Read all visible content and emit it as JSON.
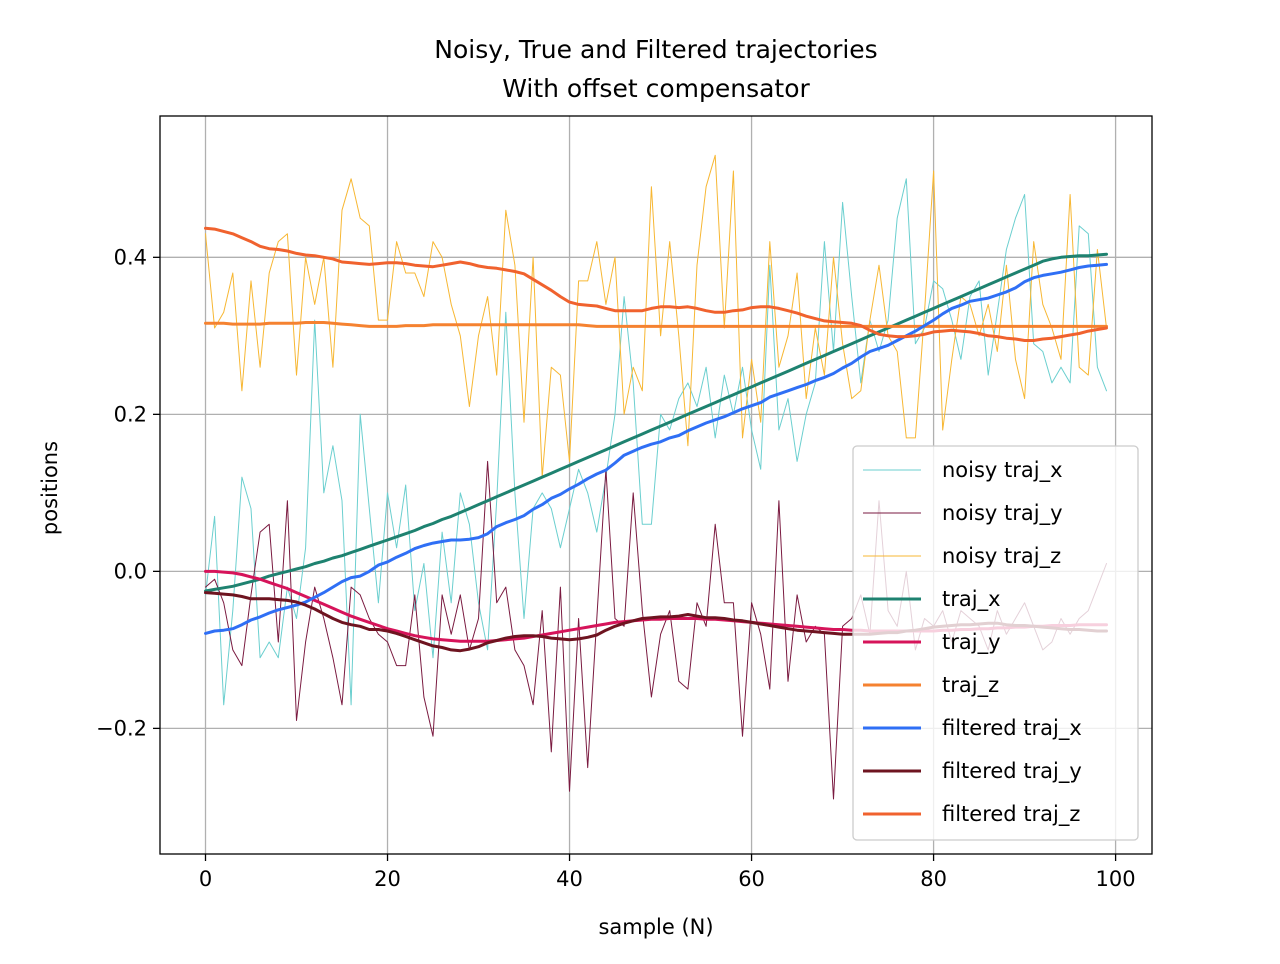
{
  "chart_data": {
    "type": "line",
    "title": "Noisy, True and Filtered trajectories",
    "subtitle": "With offset compensator",
    "xlabel": "sample (N)",
    "ylabel": "positions",
    "xlim": [
      -5,
      104
    ],
    "ylim": [
      -0.36,
      0.58
    ],
    "xticks": [
      0,
      20,
      40,
      60,
      80,
      100
    ],
    "yticks": [
      -0.2,
      0.0,
      0.2,
      0.4
    ],
    "xtick_labels": [
      "0",
      "20",
      "40",
      "60",
      "80",
      "100"
    ],
    "ytick_labels": [
      "−0.2",
      "0.0",
      "0.2",
      "0.4"
    ],
    "grid": true,
    "legend_position": "lower-right",
    "x": [
      0,
      1,
      2,
      3,
      4,
      5,
      6,
      7,
      8,
      9,
      10,
      11,
      12,
      13,
      14,
      15,
      16,
      17,
      18,
      19,
      20,
      21,
      22,
      23,
      24,
      25,
      26,
      27,
      28,
      29,
      30,
      31,
      32,
      33,
      34,
      35,
      36,
      37,
      38,
      39,
      40,
      41,
      42,
      43,
      44,
      45,
      46,
      47,
      48,
      49,
      50,
      51,
      52,
      53,
      54,
      55,
      56,
      57,
      58,
      59,
      60,
      61,
      62,
      63,
      64,
      65,
      66,
      67,
      68,
      69,
      70,
      71,
      72,
      73,
      74,
      75,
      76,
      77,
      78,
      79,
      80,
      81,
      82,
      83,
      84,
      85,
      86,
      87,
      88,
      89,
      90,
      91,
      92,
      93,
      94,
      95,
      96,
      97,
      98,
      99
    ],
    "series": [
      {
        "name": "noisy traj_x",
        "color": "#6bcfcf",
        "width": 1,
        "values": [
          -0.03,
          0.07,
          -0.17,
          -0.05,
          0.12,
          0.08,
          -0.11,
          -0.09,
          -0.11,
          -0.02,
          -0.06,
          0.03,
          0.32,
          0.1,
          0.16,
          0.09,
          -0.17,
          0.2,
          0.08,
          -0.04,
          0.1,
          0.03,
          0.11,
          -0.05,
          0.01,
          -0.11,
          0.05,
          -0.04,
          0.1,
          0.06,
          -0.04,
          -0.1,
          0.09,
          0.33,
          0.1,
          -0.06,
          0.08,
          0.1,
          0.08,
          0.03,
          0.08,
          0.13,
          0.1,
          0.05,
          0.12,
          0.2,
          0.35,
          0.24,
          0.06,
          0.06,
          0.2,
          0.18,
          0.22,
          0.24,
          0.21,
          0.26,
          0.17,
          0.25,
          0.2,
          0.26,
          0.18,
          0.13,
          0.39,
          0.18,
          0.22,
          0.14,
          0.2,
          0.24,
          0.42,
          0.28,
          0.47,
          0.35,
          0.24,
          0.32,
          0.28,
          0.32,
          0.45,
          0.5,
          0.29,
          0.31,
          0.37,
          0.36,
          0.32,
          0.27,
          0.35,
          0.37,
          0.25,
          0.33,
          0.41,
          0.45,
          0.48,
          0.29,
          0.28,
          0.24,
          0.26,
          0.24,
          0.44,
          0.43,
          0.26,
          0.23
        ]
      },
      {
        "name": "noisy traj_y",
        "color": "#7a1a40",
        "width": 1,
        "values": [
          -0.02,
          -0.01,
          -0.04,
          -0.1,
          -0.12,
          -0.03,
          0.05,
          0.06,
          -0.09,
          0.09,
          -0.19,
          -0.09,
          -0.02,
          -0.06,
          -0.11,
          -0.17,
          -0.02,
          -0.03,
          -0.06,
          -0.08,
          -0.09,
          -0.12,
          -0.12,
          -0.03,
          -0.16,
          -0.21,
          -0.03,
          -0.08,
          -0.03,
          -0.1,
          -0.06,
          0.14,
          -0.04,
          -0.02,
          -0.1,
          -0.12,
          -0.17,
          -0.05,
          -0.23,
          -0.02,
          -0.28,
          -0.06,
          -0.25,
          -0.06,
          0.13,
          -0.06,
          -0.07,
          0.1,
          -0.05,
          -0.16,
          -0.08,
          -0.05,
          -0.14,
          -0.15,
          -0.04,
          -0.07,
          0.06,
          -0.04,
          -0.04,
          -0.21,
          -0.04,
          -0.08,
          -0.15,
          0.09,
          -0.14,
          -0.03,
          -0.09,
          -0.07,
          -0.08,
          -0.29,
          -0.07,
          -0.06,
          -0.03,
          -0.08,
          0.09,
          -0.05,
          -0.07,
          0.0,
          -0.1,
          -0.06,
          -0.07,
          -0.05,
          -0.09,
          -0.05,
          -0.06,
          -0.07,
          -0.1,
          -0.05,
          -0.08,
          -0.06,
          -0.04,
          -0.07,
          -0.1,
          -0.09,
          -0.06,
          -0.08,
          -0.06,
          -0.05,
          -0.02,
          0.01
        ]
      },
      {
        "name": "noisy traj_z",
        "color": "#f7b733",
        "width": 1,
        "values": [
          0.43,
          0.31,
          0.33,
          0.38,
          0.23,
          0.37,
          0.26,
          0.38,
          0.42,
          0.43,
          0.25,
          0.4,
          0.34,
          0.4,
          0.26,
          0.46,
          0.5,
          0.45,
          0.44,
          0.32,
          0.32,
          0.42,
          0.38,
          0.38,
          0.35,
          0.42,
          0.4,
          0.34,
          0.3,
          0.21,
          0.3,
          0.35,
          0.25,
          0.46,
          0.39,
          0.19,
          0.4,
          0.12,
          0.26,
          0.25,
          0.14,
          0.37,
          0.37,
          0.42,
          0.34,
          0.4,
          0.2,
          0.26,
          0.23,
          0.49,
          0.3,
          0.42,
          0.3,
          0.16,
          0.39,
          0.49,
          0.53,
          0.31,
          0.51,
          0.17,
          0.27,
          0.19,
          0.42,
          0.26,
          0.3,
          0.38,
          0.22,
          0.31,
          0.25,
          0.4,
          0.29,
          0.22,
          0.23,
          0.32,
          0.39,
          0.3,
          0.28,
          0.17,
          0.17,
          0.33,
          0.51,
          0.18,
          0.27,
          0.35,
          0.34,
          0.3,
          0.34,
          0.28,
          0.39,
          0.27,
          0.22,
          0.42,
          0.34,
          0.31,
          0.27,
          0.48,
          0.26,
          0.25,
          0.41,
          0.31
        ]
      },
      {
        "name": "traj_x",
        "color": "#1e8270",
        "width": 3,
        "values": [
          -0.025,
          -0.023,
          -0.021,
          -0.019,
          -0.016,
          -0.013,
          -0.01,
          -0.006,
          -0.003,
          0.0,
          0.003,
          0.006,
          0.01,
          0.013,
          0.017,
          0.02,
          0.024,
          0.028,
          0.032,
          0.036,
          0.04,
          0.044,
          0.048,
          0.052,
          0.057,
          0.061,
          0.066,
          0.07,
          0.075,
          0.08,
          0.085,
          0.09,
          0.095,
          0.1,
          0.105,
          0.11,
          0.115,
          0.12,
          0.125,
          0.13,
          0.135,
          0.14,
          0.145,
          0.15,
          0.155,
          0.16,
          0.165,
          0.17,
          0.175,
          0.18,
          0.185,
          0.19,
          0.195,
          0.2,
          0.205,
          0.21,
          0.215,
          0.22,
          0.225,
          0.23,
          0.235,
          0.24,
          0.245,
          0.25,
          0.255,
          0.26,
          0.265,
          0.27,
          0.275,
          0.28,
          0.285,
          0.29,
          0.295,
          0.3,
          0.305,
          0.31,
          0.315,
          0.32,
          0.325,
          0.33,
          0.335,
          0.34,
          0.345,
          0.35,
          0.355,
          0.36,
          0.365,
          0.37,
          0.375,
          0.38,
          0.385,
          0.39,
          0.395,
          0.398,
          0.4,
          0.401,
          0.402,
          0.402,
          0.403,
          0.404
        ]
      },
      {
        "name": "traj_y",
        "color": "#d6145a",
        "width": 3,
        "values": [
          0.0,
          0.0,
          -0.001,
          -0.002,
          -0.004,
          -0.007,
          -0.01,
          -0.014,
          -0.018,
          -0.022,
          -0.027,
          -0.032,
          -0.037,
          -0.042,
          -0.047,
          -0.052,
          -0.057,
          -0.061,
          -0.065,
          -0.069,
          -0.073,
          -0.076,
          -0.079,
          -0.082,
          -0.084,
          -0.086,
          -0.087,
          -0.088,
          -0.089,
          -0.089,
          -0.089,
          -0.089,
          -0.088,
          -0.087,
          -0.086,
          -0.085,
          -0.083,
          -0.081,
          -0.079,
          -0.077,
          -0.075,
          -0.073,
          -0.071,
          -0.069,
          -0.067,
          -0.065,
          -0.064,
          -0.063,
          -0.062,
          -0.061,
          -0.061,
          -0.06,
          -0.06,
          -0.06,
          -0.06,
          -0.061,
          -0.061,
          -0.062,
          -0.063,
          -0.064,
          -0.065,
          -0.066,
          -0.067,
          -0.068,
          -0.069,
          -0.07,
          -0.071,
          -0.072,
          -0.073,
          -0.074,
          -0.074,
          -0.075,
          -0.075,
          -0.076,
          -0.076,
          -0.076,
          -0.076,
          -0.076,
          -0.076,
          -0.076,
          -0.076,
          -0.075,
          -0.075,
          -0.074,
          -0.074,
          -0.073,
          -0.073,
          -0.072,
          -0.072,
          -0.071,
          -0.071,
          -0.07,
          -0.07,
          -0.069,
          -0.069,
          -0.069,
          -0.068,
          -0.068,
          -0.068,
          -0.068
        ]
      },
      {
        "name": "traj_z",
        "color": "#f58230",
        "width": 3,
        "values": [
          0.316,
          0.316,
          0.316,
          0.315,
          0.315,
          0.315,
          0.315,
          0.316,
          0.316,
          0.316,
          0.316,
          0.317,
          0.317,
          0.317,
          0.316,
          0.315,
          0.314,
          0.313,
          0.312,
          0.312,
          0.312,
          0.312,
          0.313,
          0.313,
          0.313,
          0.314,
          0.314,
          0.314,
          0.314,
          0.314,
          0.314,
          0.314,
          0.314,
          0.314,
          0.314,
          0.314,
          0.314,
          0.314,
          0.314,
          0.314,
          0.314,
          0.314,
          0.313,
          0.312,
          0.312,
          0.312,
          0.312,
          0.312,
          0.312,
          0.312,
          0.312,
          0.312,
          0.312,
          0.312,
          0.312,
          0.312,
          0.312,
          0.312,
          0.312,
          0.312,
          0.312,
          0.312,
          0.312,
          0.312,
          0.312,
          0.312,
          0.312,
          0.312,
          0.312,
          0.312,
          0.312,
          0.312,
          0.312,
          0.312,
          0.312,
          0.312,
          0.312,
          0.312,
          0.312,
          0.312,
          0.312,
          0.312,
          0.312,
          0.312,
          0.312,
          0.312,
          0.312,
          0.312,
          0.312,
          0.312,
          0.312,
          0.312,
          0.312,
          0.312,
          0.312,
          0.312,
          0.312,
          0.312,
          0.312,
          0.312
        ]
      },
      {
        "name": "filtered traj_x",
        "color": "#2f6ff5",
        "width": 3,
        "values": [
          -0.079,
          -0.076,
          -0.075,
          -0.073,
          -0.068,
          -0.062,
          -0.058,
          -0.053,
          -0.049,
          -0.046,
          -0.043,
          -0.039,
          -0.033,
          -0.027,
          -0.02,
          -0.013,
          -0.008,
          -0.006,
          0.0,
          0.008,
          0.012,
          0.018,
          0.023,
          0.029,
          0.033,
          0.036,
          0.038,
          0.04,
          0.04,
          0.041,
          0.043,
          0.048,
          0.057,
          0.062,
          0.066,
          0.071,
          0.079,
          0.085,
          0.093,
          0.098,
          0.105,
          0.111,
          0.118,
          0.124,
          0.129,
          0.138,
          0.148,
          0.153,
          0.158,
          0.162,
          0.165,
          0.17,
          0.173,
          0.179,
          0.184,
          0.189,
          0.193,
          0.197,
          0.202,
          0.207,
          0.211,
          0.215,
          0.222,
          0.226,
          0.23,
          0.234,
          0.238,
          0.243,
          0.247,
          0.252,
          0.259,
          0.265,
          0.273,
          0.28,
          0.284,
          0.288,
          0.294,
          0.3,
          0.306,
          0.313,
          0.32,
          0.328,
          0.335,
          0.339,
          0.344,
          0.346,
          0.348,
          0.352,
          0.356,
          0.361,
          0.369,
          0.374,
          0.377,
          0.379,
          0.381,
          0.384,
          0.387,
          0.389,
          0.39,
          0.391
        ]
      },
      {
        "name": "filtered traj_y",
        "color": "#6e1420",
        "width": 3,
        "values": [
          -0.027,
          -0.028,
          -0.029,
          -0.03,
          -0.032,
          -0.035,
          -0.035,
          -0.035,
          -0.036,
          -0.037,
          -0.039,
          -0.043,
          -0.048,
          -0.054,
          -0.06,
          -0.065,
          -0.068,
          -0.07,
          -0.074,
          -0.074,
          -0.076,
          -0.079,
          -0.083,
          -0.087,
          -0.091,
          -0.095,
          -0.097,
          -0.1,
          -0.101,
          -0.099,
          -0.096,
          -0.091,
          -0.088,
          -0.085,
          -0.083,
          -0.082,
          -0.082,
          -0.083,
          -0.085,
          -0.086,
          -0.087,
          -0.086,
          -0.084,
          -0.081,
          -0.075,
          -0.07,
          -0.066,
          -0.063,
          -0.06,
          -0.059,
          -0.058,
          -0.058,
          -0.057,
          -0.055,
          -0.057,
          -0.059,
          -0.059,
          -0.06,
          -0.062,
          -0.063,
          -0.065,
          -0.067,
          -0.069,
          -0.071,
          -0.073,
          -0.075,
          -0.076,
          -0.077,
          -0.078,
          -0.079,
          -0.08,
          -0.08,
          -0.08,
          -0.08,
          -0.079,
          -0.078,
          -0.078,
          -0.076,
          -0.075,
          -0.073,
          -0.071,
          -0.07,
          -0.069,
          -0.068,
          -0.068,
          -0.067,
          -0.066,
          -0.066,
          -0.068,
          -0.069,
          -0.069,
          -0.07,
          -0.071,
          -0.072,
          -0.073,
          -0.074,
          -0.074,
          -0.075,
          -0.076,
          -0.076
        ]
      },
      {
        "name": "filtered traj_z",
        "color": "#f0622e",
        "width": 3,
        "values": [
          0.437,
          0.436,
          0.433,
          0.43,
          0.425,
          0.42,
          0.414,
          0.411,
          0.41,
          0.408,
          0.405,
          0.403,
          0.402,
          0.4,
          0.398,
          0.394,
          0.393,
          0.392,
          0.391,
          0.392,
          0.393,
          0.393,
          0.392,
          0.39,
          0.389,
          0.388,
          0.39,
          0.392,
          0.394,
          0.392,
          0.389,
          0.387,
          0.386,
          0.384,
          0.382,
          0.379,
          0.372,
          0.365,
          0.358,
          0.35,
          0.343,
          0.34,
          0.339,
          0.338,
          0.335,
          0.332,
          0.332,
          0.332,
          0.332,
          0.335,
          0.337,
          0.337,
          0.336,
          0.337,
          0.335,
          0.332,
          0.33,
          0.33,
          0.332,
          0.333,
          0.336,
          0.337,
          0.337,
          0.335,
          0.332,
          0.329,
          0.325,
          0.322,
          0.319,
          0.318,
          0.317,
          0.316,
          0.313,
          0.307,
          0.302,
          0.3,
          0.299,
          0.299,
          0.3,
          0.302,
          0.305,
          0.306,
          0.307,
          0.306,
          0.305,
          0.303,
          0.3,
          0.299,
          0.297,
          0.296,
          0.294,
          0.294,
          0.296,
          0.297,
          0.299,
          0.301,
          0.303,
          0.306,
          0.308,
          0.31
        ]
      }
    ]
  }
}
